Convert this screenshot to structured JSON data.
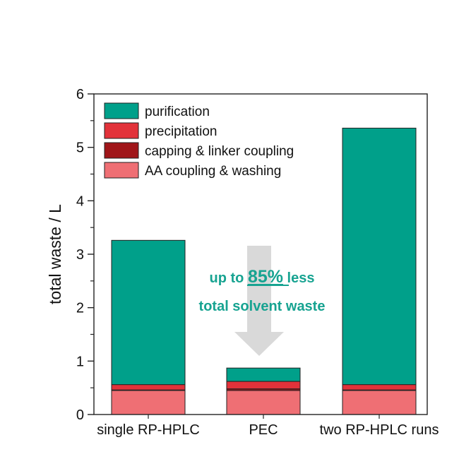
{
  "chart_data": {
    "type": "bar",
    "stacked": true,
    "categories": [
      "single RP-HPLC",
      "PEC",
      "two RP-HPLC runs"
    ],
    "series": [
      {
        "name": "AA coupling & washing",
        "color": "#ef6f74",
        "values": [
          0.45,
          0.45,
          0.45
        ]
      },
      {
        "name": "capping & linker coupling",
        "color": "#a01519",
        "values": [
          0.01,
          0.03,
          0.01
        ]
      },
      {
        "name": "precipitation",
        "color": "#e2323a",
        "values": [
          0.1,
          0.14,
          0.1
        ]
      },
      {
        "name": "purification",
        "color": "#00a08a",
        "values": [
          2.7,
          0.25,
          4.8
        ]
      }
    ],
    "ylabel": "total waste / L",
    "xlabel": "",
    "ylim": [
      0,
      6
    ],
    "yticks": [
      "0",
      "1",
      "2",
      "3",
      "4",
      "5",
      "6"
    ],
    "legend_position": "top-left",
    "annotation": {
      "prefix": "up to ",
      "highlight": "85%",
      "suffix": " less",
      "line2": "total solvent waste",
      "color": "#17a391",
      "arrow_color": "#d9d9d9"
    }
  }
}
